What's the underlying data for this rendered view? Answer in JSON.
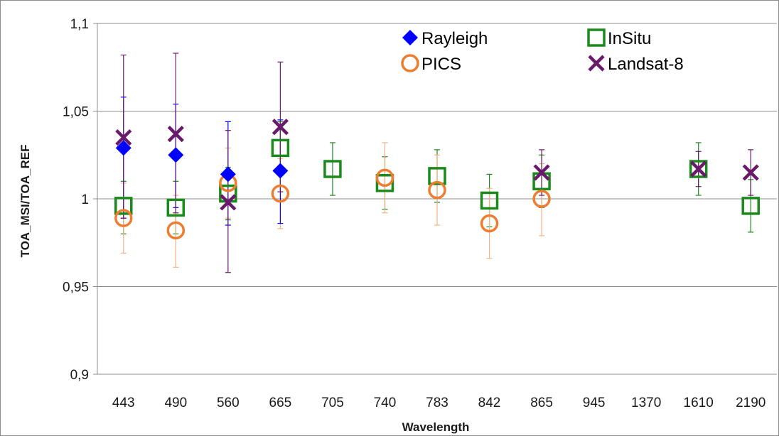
{
  "chart_data": {
    "type": "scatter",
    "xlabel": "Wavelength",
    "ylabel": "TOA_MSI/TOA_REF",
    "categories": [
      "443",
      "490",
      "560",
      "665",
      "705",
      "740",
      "783",
      "842",
      "865",
      "945",
      "1370",
      "1610",
      "2190"
    ],
    "ylim": [
      0.9,
      1.1
    ],
    "yticks": [
      0.9,
      0.95,
      1,
      1.05,
      1.1
    ],
    "ytick_labels": [
      "0,9",
      "0,95",
      "1",
      "1,05",
      "1,1"
    ],
    "grid": "horizontal",
    "legend_position": "top-right",
    "series": [
      {
        "name": "Rayleigh",
        "marker": "diamond",
        "color": "#0000ff",
        "points": [
          {
            "x": "443",
            "y": 1.029,
            "err_low": 0.989,
            "err_high": 1.058
          },
          {
            "x": "490",
            "y": 1.025,
            "err_low": 0.995,
            "err_high": 1.054
          },
          {
            "x": "560",
            "y": 1.014,
            "err_low": 0.985,
            "err_high": 1.044
          },
          {
            "x": "665",
            "y": 1.016,
            "err_low": 0.986,
            "err_high": 1.045
          }
        ]
      },
      {
        "name": "InSitu",
        "marker": "square",
        "color": "#1a8a1a",
        "points": [
          {
            "x": "443",
            "y": 0.996,
            "err_low": 0.98,
            "err_high": 1.01
          },
          {
            "x": "490",
            "y": 0.995,
            "err_low": 0.98,
            "err_high": 1.01
          },
          {
            "x": "560",
            "y": 1.003,
            "err_low": 0.988,
            "err_high": 1.018
          },
          {
            "x": "665",
            "y": 1.029,
            "err_low": 1.014,
            "err_high": 1.044
          },
          {
            "x": "705",
            "y": 1.017,
            "err_low": 1.002,
            "err_high": 1.032
          },
          {
            "x": "740",
            "y": 1.009,
            "err_low": 0.994,
            "err_high": 1.024
          },
          {
            "x": "783",
            "y": 1.013,
            "err_low": 0.998,
            "err_high": 1.028
          },
          {
            "x": "842",
            "y": 0.999,
            "err_low": 0.984,
            "err_high": 1.014
          },
          {
            "x": "865",
            "y": 1.01,
            "err_low": 0.995,
            "err_high": 1.025
          },
          {
            "x": "1610",
            "y": 1.017,
            "err_low": 1.002,
            "err_high": 1.032
          },
          {
            "x": "2190",
            "y": 0.996,
            "err_low": 0.981,
            "err_high": 1.011
          }
        ]
      },
      {
        "name": "PICS",
        "marker": "circle",
        "color": "#ed7d31",
        "points": [
          {
            "x": "443",
            "y": 0.989,
            "err_low": 0.969,
            "err_high": 1.009
          },
          {
            "x": "490",
            "y": 0.982,
            "err_low": 0.961,
            "err_high": 1.002
          },
          {
            "x": "560",
            "y": 1.009,
            "err_low": 0.989,
            "err_high": 1.029
          },
          {
            "x": "665",
            "y": 1.003,
            "err_low": 0.983,
            "err_high": 1.023
          },
          {
            "x": "740",
            "y": 1.012,
            "err_low": 0.992,
            "err_high": 1.032
          },
          {
            "x": "783",
            "y": 1.005,
            "err_low": 0.985,
            "err_high": 1.025
          },
          {
            "x": "842",
            "y": 0.986,
            "err_low": 0.966,
            "err_high": 1.006
          },
          {
            "x": "865",
            "y": 1.0,
            "err_low": 0.979,
            "err_high": 1.02
          }
        ]
      },
      {
        "name": "Landsat-8",
        "marker": "x",
        "color": "#6a1a6a",
        "points": [
          {
            "x": "443",
            "y": 1.035,
            "err_low": 0.989,
            "err_high": 1.082
          },
          {
            "x": "490",
            "y": 1.037,
            "err_low": 0.992,
            "err_high": 1.083
          },
          {
            "x": "560",
            "y": 0.998,
            "err_low": 0.958,
            "err_high": 1.039
          },
          {
            "x": "665",
            "y": 1.041,
            "err_low": 1.004,
            "err_high": 1.078
          },
          {
            "x": "865",
            "y": 1.015,
            "err_low": 1.002,
            "err_high": 1.028
          },
          {
            "x": "1610",
            "y": 1.017,
            "err_low": 1.007,
            "err_high": 1.027
          },
          {
            "x": "2190",
            "y": 1.015,
            "err_low": 1.002,
            "err_high": 1.028
          }
        ]
      }
    ]
  }
}
